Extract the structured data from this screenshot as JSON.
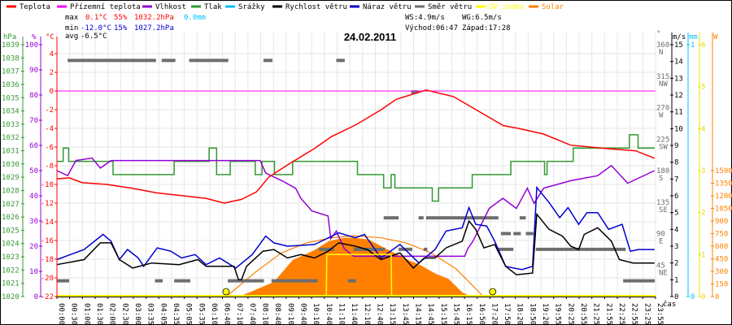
{
  "legend": [
    {
      "label": "Teplota",
      "color": "#ff0000"
    },
    {
      "label": "Přízemní teplota",
      "color": "#ff00ff"
    },
    {
      "label": "Vlhkost",
      "color": "#9400d3"
    },
    {
      "label": "Tlak",
      "color": "#339933"
    },
    {
      "label": "Srážky",
      "color": "#00bfff"
    },
    {
      "label": "Rychlost větru",
      "color": "#000000"
    },
    {
      "label": "Náraz větru",
      "color": "#0000cc"
    },
    {
      "label": "Směr větru",
      "color": "#6e6e6e"
    },
    {
      "label": "UV index",
      "color": "#ffff00"
    },
    {
      "label": "Solar",
      "color": "#ff8000"
    }
  ],
  "stats": {
    "max_label": "max",
    "max_temp": "0.1°C",
    "max_hum": "55%",
    "max_press": "1032.2hPa",
    "max_rain": "0.0mm",
    "min_label": "min",
    "min_temp": "-12.0°C",
    "min_hum": "15%",
    "min_press": "1027.2hPa",
    "avg_label": "avg",
    "avg_temp": "-6.5°C",
    "ws": "WS:4.9m/s",
    "wg": "WG:6.5m/s",
    "sunrise": "Východ:06:47",
    "sunset": "Západ:17:28"
  },
  "chart_data": {
    "type": "line",
    "title": "24.02.2011",
    "xlabel": "čas",
    "x_unit": "hours",
    "xlim": [
      0,
      24
    ],
    "x_tick_labels": [
      "00:00",
      "00:30",
      "01:00",
      "01:30",
      "02:00",
      "02:30",
      "03:00",
      "03:35",
      "04:05",
      "04:35",
      "05:05",
      "05:35",
      "06:10",
      "06:40",
      "07:10",
      "07:40",
      "08:10",
      "08:40",
      "09:10",
      "09:40",
      "10:10",
      "10:40",
      "11:10",
      "11:40",
      "12:10",
      "12:40",
      "13:15",
      "13:45",
      "14:15",
      "14:45",
      "15:15",
      "15:45",
      "16:15",
      "16:50",
      "17:20",
      "17:50",
      "18:20",
      "18:50",
      "19:20",
      "19:55",
      "20:25",
      "20:55",
      "21:25",
      "21:55",
      "22:25",
      "22:55",
      "23:25",
      "23:55"
    ],
    "grid": true,
    "axes": {
      "pressure": {
        "unit": "hPa",
        "range": [
          1020,
          1039
        ],
        "ticks": [
          "1020",
          "1021",
          "1022",
          "1023",
          "1024",
          "1025",
          "1026",
          "1027",
          "1028",
          "1029",
          "1030",
          "1031",
          "1032",
          "1033",
          "1034",
          "1035",
          "1036",
          "1037",
          "1038",
          "1039"
        ],
        "color": "#339933"
      },
      "humidity": {
        "unit": "%",
        "range": [
          0,
          100
        ],
        "ticks": [
          "0",
          "10",
          "20",
          "30",
          "40",
          "50",
          "60",
          "70",
          "80",
          "90",
          "100"
        ],
        "color": "#9400d3"
      },
      "temperature": {
        "unit": "°C",
        "range": [
          -22,
          4
        ],
        "ticks": [
          "-22",
          "-20",
          "-18",
          "-16",
          "-14",
          "-12",
          "-10",
          "-8",
          "-6",
          "-4",
          "-2",
          "0",
          "2",
          "4"
        ],
        "color": "#ff0000"
      },
      "direction": {
        "unit": "°",
        "range": [
          0,
          360
        ],
        "ticks": [
          {
            "v": "45",
            "d": "NE"
          },
          {
            "v": "90",
            "d": "E"
          },
          {
            "v": "135",
            "d": "SE"
          },
          {
            "v": "180",
            "d": "S"
          },
          {
            "v": "225",
            "d": "SW"
          },
          {
            "v": "270",
            "d": "W"
          },
          {
            "v": "315",
            "d": "NW"
          },
          {
            "v": "360",
            "d": "N"
          }
        ],
        "color": "#6e6e6e"
      },
      "wind": {
        "unit": "m/s",
        "range": [
          0,
          15
        ],
        "ticks": [
          "0",
          "1",
          "2",
          "3",
          "4",
          "5",
          "6",
          "7",
          "8",
          "9",
          "10",
          "11",
          "12",
          "13",
          "14",
          "15"
        ],
        "color": "#000000"
      },
      "rain": {
        "unit": "mm",
        "range": [
          0,
          1
        ],
        "ticks": [
          "0",
          "1"
        ],
        "color": "#00bfff"
      },
      "uv": {
        "unit": "",
        "range": [
          0,
          6
        ],
        "ticks": [
          "0",
          "1",
          "2",
          "3",
          "4",
          "5",
          "6"
        ],
        "color": "#ffff00"
      },
      "solar": {
        "unit": "W",
        "range": [
          0,
          1500
        ],
        "ticks": [
          "0",
          "150",
          "300",
          "450",
          "600",
          "750",
          "900",
          "1050",
          "1200",
          "1350",
          "1500"
        ],
        "color": "#ff8000"
      }
    },
    "sun_events": [
      {
        "name": "sunrise",
        "time": 6.78
      },
      {
        "name": "sunset",
        "time": 17.47
      }
    ],
    "series": {
      "temperature": [
        [
          0,
          -9.4
        ],
        [
          0.5,
          -9.3
        ],
        [
          1,
          -9.8
        ],
        [
          2,
          -10.0
        ],
        [
          3,
          -10.4
        ],
        [
          4,
          -10.9
        ],
        [
          5,
          -11.2
        ],
        [
          6,
          -11.5
        ],
        [
          6.7,
          -12.0
        ],
        [
          7.4,
          -11.6
        ],
        [
          8,
          -10.8
        ],
        [
          8.5,
          -9.2
        ],
        [
          9.25,
          -7.9
        ],
        [
          10.3,
          -6.2
        ],
        [
          11,
          -4.9
        ],
        [
          12,
          -3.6
        ],
        [
          13,
          -2.0
        ],
        [
          13.6,
          -0.9
        ],
        [
          14.8,
          0.1
        ],
        [
          15.9,
          -0.6
        ],
        [
          16.8,
          -2.0
        ],
        [
          17.9,
          -3.7
        ],
        [
          18.5,
          -4.0
        ],
        [
          19.5,
          -4.6
        ],
        [
          20.6,
          -5.8
        ],
        [
          22.2,
          -6.2
        ],
        [
          23.2,
          -6.4
        ],
        [
          23.96,
          -7.2
        ]
      ],
      "apparent_temperature": [
        [
          0,
          0
        ],
        [
          24,
          0
        ]
      ],
      "humidity": [
        [
          0,
          50
        ],
        [
          0.43,
          48
        ],
        [
          0.76,
          54
        ],
        [
          1.41,
          55
        ],
        [
          1.74,
          51
        ],
        [
          2.17,
          54
        ],
        [
          8.15,
          54
        ],
        [
          8.37,
          49
        ],
        [
          9.02,
          46
        ],
        [
          9.57,
          43
        ],
        [
          9.78,
          39
        ],
        [
          10.22,
          34
        ],
        [
          10.87,
          32
        ],
        [
          10.98,
          23
        ],
        [
          11.2,
          26
        ],
        [
          11.52,
          19
        ],
        [
          11.9,
          16
        ],
        [
          16.35,
          16
        ],
        [
          16.47,
          19
        ],
        [
          16.68,
          22
        ],
        [
          17.33,
          35
        ],
        [
          17.88,
          39
        ],
        [
          18.42,
          35
        ],
        [
          18.86,
          43
        ],
        [
          19.13,
          37
        ],
        [
          19.51,
          43
        ],
        [
          20.6,
          46
        ],
        [
          21.68,
          48
        ],
        [
          22.23,
          52
        ],
        [
          22.88,
          45
        ],
        [
          23.96,
          50
        ]
      ],
      "pressure": [
        [
          0,
          1030.2
        ],
        [
          0.25,
          1031.2
        ],
        [
          0.47,
          1030.2
        ],
        [
          2.25,
          1029.2
        ],
        [
          4.7,
          1030.2
        ],
        [
          6.1,
          1031.2
        ],
        [
          6.4,
          1029.2
        ],
        [
          6.95,
          1030.2
        ],
        [
          7.95,
          1029.2
        ],
        [
          8.22,
          1030.2
        ],
        [
          8.72,
          1029.2
        ],
        [
          9.45,
          1030.2
        ],
        [
          12.05,
          1029.2
        ],
        [
          13.1,
          1028.2
        ],
        [
          13.4,
          1029.2
        ],
        [
          13.55,
          1028.2
        ],
        [
          15.05,
          1027.2
        ],
        [
          15.3,
          1028.2
        ],
        [
          16.65,
          1029.2
        ],
        [
          18.2,
          1030.2
        ],
        [
          19.55,
          1029.2
        ],
        [
          19.65,
          1030.2
        ],
        [
          20.7,
          1031.2
        ],
        [
          22.95,
          1032.2
        ],
        [
          23.3,
          1031.2
        ],
        [
          23.96,
          1031.2
        ]
      ],
      "wind_speed": [
        [
          0,
          1.9
        ],
        [
          1.09,
          2.2
        ],
        [
          1.74,
          3.2
        ],
        [
          2.17,
          3.2
        ],
        [
          2.5,
          2.2
        ],
        [
          3.04,
          1.7
        ],
        [
          3.8,
          2.0
        ],
        [
          4.9,
          1.9
        ],
        [
          5.65,
          2.2
        ],
        [
          5.98,
          1.8
        ],
        [
          6.74,
          1.8
        ],
        [
          7.1,
          1.8
        ],
        [
          7.28,
          1.0
        ],
        [
          7.4,
          1.0
        ],
        [
          7.6,
          1.8
        ],
        [
          8.26,
          2.7
        ],
        [
          8.7,
          2.8
        ],
        [
          9.24,
          2.3
        ],
        [
          9.78,
          2.5
        ],
        [
          10.33,
          2.3
        ],
        [
          10.87,
          2.7
        ],
        [
          11.3,
          3.2
        ],
        [
          11.96,
          3.0
        ],
        [
          12.44,
          2.8
        ],
        [
          12.99,
          2.2
        ],
        [
          13.75,
          2.6
        ],
        [
          14.29,
          1.7
        ],
        [
          14.73,
          2.3
        ],
        [
          15.16,
          2.3
        ],
        [
          15.6,
          2.9
        ],
        [
          16.25,
          3.3
        ],
        [
          16.52,
          4.5
        ],
        [
          16.79,
          4.0
        ],
        [
          17.12,
          2.9
        ],
        [
          17.55,
          3.1
        ],
        [
          17.99,
          1.8
        ],
        [
          18.42,
          1.3
        ],
        [
          19.07,
          1.4
        ],
        [
          19.24,
          4.9
        ],
        [
          19.73,
          4.0
        ],
        [
          20.27,
          3.6
        ],
        [
          20.6,
          3.0
        ],
        [
          20.92,
          2.8
        ],
        [
          21.14,
          3.7
        ],
        [
          21.68,
          4.1
        ],
        [
          22.23,
          3.3
        ],
        [
          22.55,
          2.2
        ],
        [
          23.1,
          2.0
        ],
        [
          23.96,
          2.0
        ]
      ],
      "wind_gust": [
        [
          0,
          2.2
        ],
        [
          0.54,
          2.5
        ],
        [
          1.09,
          2.8
        ],
        [
          1.85,
          3.7
        ],
        [
          2.17,
          3.3
        ],
        [
          2.5,
          2.2
        ],
        [
          2.83,
          2.8
        ],
        [
          3.26,
          2.3
        ],
        [
          3.48,
          1.8
        ],
        [
          4.02,
          2.9
        ],
        [
          4.57,
          2.7
        ],
        [
          5.0,
          2.3
        ],
        [
          5.54,
          2.5
        ],
        [
          5.98,
          1.9
        ],
        [
          6.52,
          2.3
        ],
        [
          7.17,
          1.7
        ],
        [
          7.83,
          2.5
        ],
        [
          8.37,
          3.6
        ],
        [
          8.7,
          3.2
        ],
        [
          9.24,
          3.0
        ],
        [
          10.33,
          3.1
        ],
        [
          11.3,
          3.8
        ],
        [
          11.96,
          3.5
        ],
        [
          12.33,
          3.7
        ],
        [
          12.99,
          2.3
        ],
        [
          13.75,
          3.1
        ],
        [
          14.51,
          2.0
        ],
        [
          15.16,
          2.8
        ],
        [
          15.6,
          3.9
        ],
        [
          16.25,
          4.1
        ],
        [
          16.52,
          5.3
        ],
        [
          16.79,
          4.3
        ],
        [
          17.23,
          4.2
        ],
        [
          17.55,
          3.3
        ],
        [
          17.99,
          1.8
        ],
        [
          18.64,
          1.6
        ],
        [
          19.07,
          1.8
        ],
        [
          19.24,
          6.5
        ],
        [
          19.73,
          5.6
        ],
        [
          20.16,
          4.7
        ],
        [
          20.49,
          5.3
        ],
        [
          20.92,
          4.3
        ],
        [
          21.25,
          5.0
        ],
        [
          21.68,
          5.0
        ],
        [
          22.12,
          4.0
        ],
        [
          22.66,
          4.3
        ],
        [
          22.99,
          2.7
        ],
        [
          23.31,
          2.8
        ],
        [
          23.96,
          2.8
        ]
      ],
      "wind_direction": [
        [
          0,
          0.49,
          22.5
        ],
        [
          0.43,
          3.97,
          337.5
        ],
        [
          3.93,
          4.24,
          22.5
        ],
        [
          4.2,
          4.75,
          337.5
        ],
        [
          4.7,
          5.35,
          22.5
        ],
        [
          5.3,
          6.87,
          337.5
        ],
        [
          6.85,
          8.3,
          22.5
        ],
        [
          8.28,
          8.64,
          337.5
        ],
        [
          8.6,
          10.45,
          22.5
        ],
        [
          10.5,
          11.1,
          67.5
        ],
        [
          11.2,
          11.54,
          337.5
        ],
        [
          11.66,
          12.0,
          22.5
        ],
        [
          11.9,
          13.15,
          67.5
        ],
        [
          13.1,
          13.7,
          112.5
        ],
        [
          13.7,
          14.25,
          67.5
        ],
        [
          14.2,
          14.5,
          292.5
        ],
        [
          14.5,
          14.7,
          112.5
        ],
        [
          14.7,
          14.85,
          67.5
        ],
        [
          14.8,
          17.7,
          112.5
        ],
        [
          17.7,
          18.3,
          67.5
        ],
        [
          17.8,
          18.2,
          90
        ],
        [
          18.3,
          18.6,
          90
        ],
        [
          18.55,
          18.8,
          112.5
        ],
        [
          18.8,
          19.1,
          90
        ],
        [
          19.2,
          22.8,
          67.5
        ],
        [
          22.7,
          23.97,
          22.5
        ]
      ],
      "rain": [
        [
          10.8,
          0
        ],
        [
          13.4,
          0
        ]
      ],
      "uv_index": [
        [
          10.8,
          0
        ],
        [
          10.82,
          1
        ],
        [
          13.4,
          1
        ],
        [
          13.42,
          0
        ]
      ],
      "solar": [
        [
          7.3,
          0
        ],
        [
          7.8,
          60
        ],
        [
          8.7,
          174
        ],
        [
          9.45,
          435
        ],
        [
          10.3,
          550
        ],
        [
          10.9,
          660
        ],
        [
          11.5,
          700
        ],
        [
          11.9,
          700
        ],
        [
          12.5,
          680
        ],
        [
          13.0,
          600
        ],
        [
          14.1,
          435
        ],
        [
          14.6,
          370
        ],
        [
          15.2,
          270
        ],
        [
          15.7,
          210
        ],
        [
          16.25,
          50
        ],
        [
          16.6,
          0
        ]
      ],
      "solar_max": [
        [
          6.8,
          0
        ],
        [
          8,
          300
        ],
        [
          9,
          520
        ],
        [
          10,
          640
        ],
        [
          11,
          700
        ],
        [
          11.9,
          725
        ],
        [
          13,
          700
        ],
        [
          14,
          640
        ],
        [
          15,
          520
        ],
        [
          16,
          330
        ],
        [
          17.1,
          0
        ]
      ]
    }
  }
}
